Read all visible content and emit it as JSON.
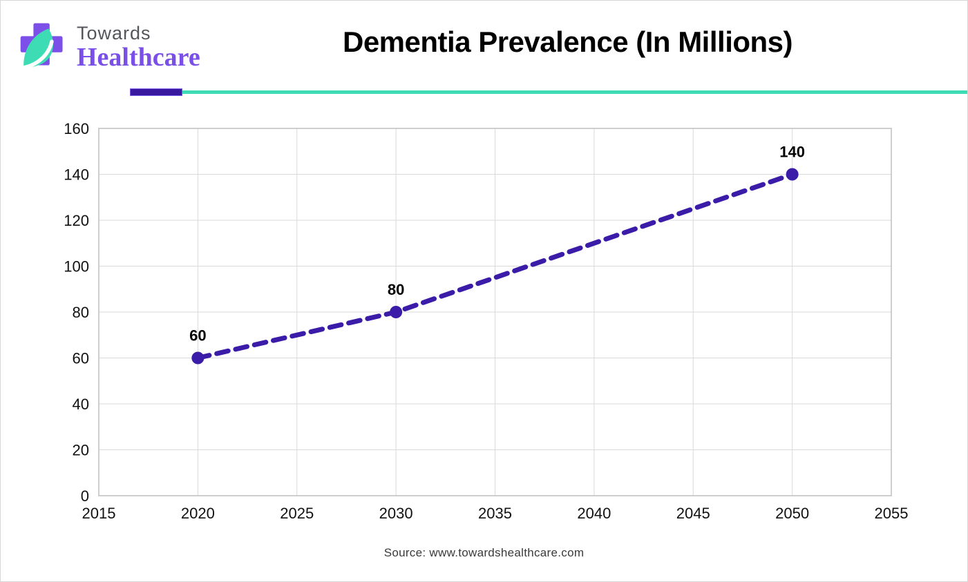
{
  "header": {
    "logo": {
      "line1": "Towards",
      "line2": "Healthcare"
    },
    "title": "Dementia Prevalence (In Millions)"
  },
  "divider": {
    "accent_color": "#371a9e",
    "line_color": "#3edcb4"
  },
  "colors": {
    "line": "#3a1ca8",
    "marker": "#3a1ca8",
    "grid": "#d9d9d9",
    "plot_border": "#bfbfbf",
    "tick_text": "#111111",
    "logo_cross": "#7b4fe8",
    "logo_leaf": "#3edcb4"
  },
  "chart_data": {
    "type": "line",
    "title": "Dementia Prevalence (In Millions)",
    "x": [
      2020,
      2030,
      2050
    ],
    "values": [
      60,
      80,
      140
    ],
    "data_labels": [
      "60",
      "80",
      "140"
    ],
    "xlim": [
      2015,
      2055
    ],
    "ylim": [
      0,
      160
    ],
    "x_ticks": [
      2015,
      2020,
      2025,
      2030,
      2035,
      2040,
      2045,
      2050,
      2055
    ],
    "y_ticks": [
      0,
      20,
      40,
      60,
      80,
      100,
      120,
      140,
      160
    ],
    "grid": true,
    "legend": false,
    "line_style": "dashed",
    "marker": "circle"
  },
  "footer": {
    "source": "Source: www.towardshealthcare.com"
  }
}
